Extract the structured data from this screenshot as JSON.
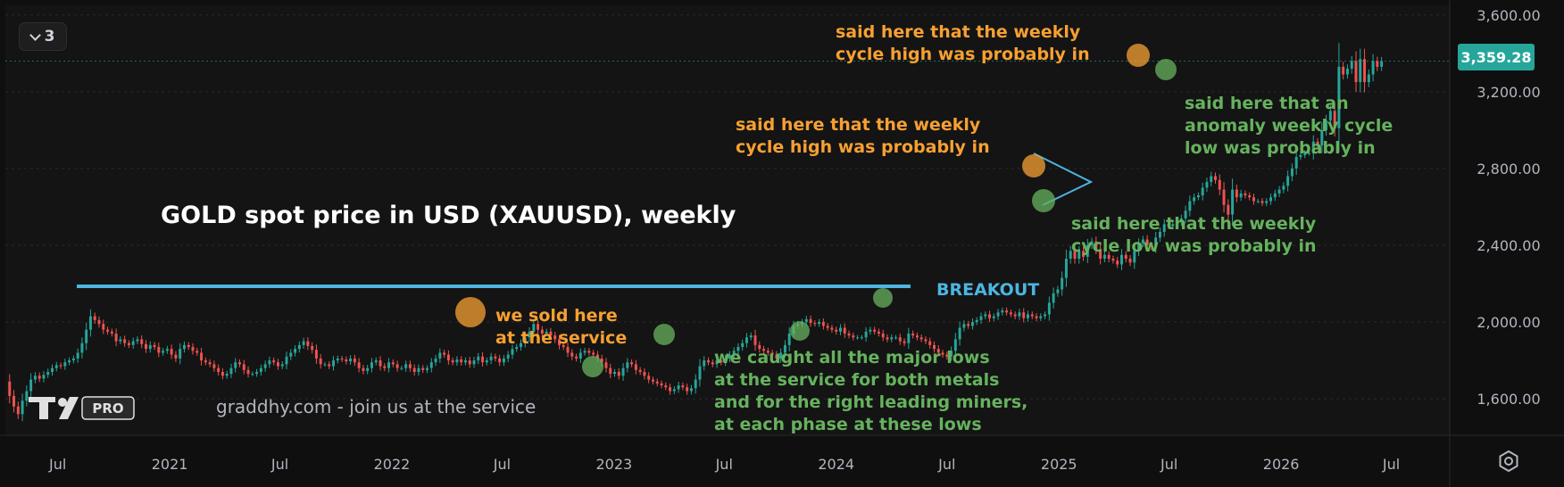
{
  "interval": {
    "label": "3"
  },
  "last_price": {
    "label": "3,359.28",
    "value": 3359.28,
    "color": "#26a69a"
  },
  "logo": {
    "label": "PRO"
  },
  "watermark": "graddhy.com - join us at the service",
  "icons": {
    "interval": "chevron-down-icon",
    "settings": "gear-icon",
    "logo": "tradingview-logo-icon"
  },
  "colors": {
    "up": "#26a69a",
    "down": "#ef5350",
    "orange": "#f7a032",
    "green": "#66b25e",
    "blue": "#4cb5e0",
    "axis_text": "#b2b5be"
  },
  "chart_data": {
    "type": "candlestick",
    "title": "GOLD spot price in USD (XAUUSD), weekly",
    "y_ticks": [
      1600,
      2000,
      2400,
      2800,
      3200,
      3600
    ],
    "y_tick_labels": [
      "1,600.00",
      "2,000.00",
      "2,400.00",
      "2,800.00",
      "3,200.00",
      "3,600.00"
    ],
    "ylim": [
      1410,
      3650
    ],
    "xlim": [
      "2020-04-06",
      "2026-10-05"
    ],
    "x_ticks": [
      {
        "date": "2020-07-01",
        "label": "Jul"
      },
      {
        "date": "2021-01-01",
        "label": "2021"
      },
      {
        "date": "2021-07-01",
        "label": "Jul"
      },
      {
        "date": "2022-01-01",
        "label": "2022"
      },
      {
        "date": "2022-07-01",
        "label": "Jul"
      },
      {
        "date": "2023-01-01",
        "label": "2023"
      },
      {
        "date": "2023-07-01",
        "label": "Jul"
      },
      {
        "date": "2024-01-01",
        "label": "2024"
      },
      {
        "date": "2024-07-01",
        "label": "Jul"
      },
      {
        "date": "2025-01-01",
        "label": "2025"
      },
      {
        "date": "2025-07-01",
        "label": "Jul"
      },
      {
        "date": "2026-01-01",
        "label": "2026"
      },
      {
        "date": "2026-07-01",
        "label": "Jul"
      }
    ],
    "start_date": "2020-04-06",
    "closes": [
      1690,
      1615,
      1560,
      1520,
      1590,
      1640,
      1700,
      1720,
      1705,
      1725,
      1740,
      1760,
      1775,
      1770,
      1790,
      1800,
      1810,
      1840,
      1890,
      1960,
      2030,
      2010,
      1990,
      1960,
      1950,
      1940,
      1900,
      1910,
      1890,
      1880,
      1900,
      1910,
      1885,
      1860,
      1880,
      1870,
      1840,
      1850,
      1860,
      1830,
      1810,
      1860,
      1880,
      1870,
      1850,
      1840,
      1800,
      1790,
      1780,
      1760,
      1740,
      1720,
      1730,
      1760,
      1790,
      1780,
      1750,
      1730,
      1730,
      1740,
      1760,
      1780,
      1800,
      1790,
      1770,
      1780,
      1820,
      1840,
      1860,
      1880,
      1900,
      1875,
      1855,
      1810,
      1780,
      1780,
      1770,
      1800,
      1810,
      1805,
      1795,
      1810,
      1790,
      1760,
      1745,
      1760,
      1790,
      1800,
      1770,
      1760,
      1790,
      1780,
      1760,
      1760,
      1780,
      1760,
      1740,
      1760,
      1750,
      1760,
      1790,
      1810,
      1840,
      1830,
      1800,
      1790,
      1805,
      1790,
      1800,
      1780,
      1800,
      1820,
      1790,
      1800,
      1820,
      1810,
      1790,
      1810,
      1830,
      1860,
      1870,
      1890,
      1920,
      1950,
      1990,
      1960,
      1940,
      1950,
      1930,
      1910,
      1880,
      1870,
      1840,
      1820,
      1810,
      1840,
      1850,
      1840,
      1830,
      1810,
      1790,
      1760,
      1730,
      1740,
      1720,
      1760,
      1790,
      1780,
      1750,
      1740,
      1720,
      1700,
      1690,
      1680,
      1670,
      1660,
      1640,
      1650,
      1670,
      1660,
      1640,
      1655,
      1700,
      1770,
      1800,
      1790,
      1780,
      1800,
      1790,
      1810,
      1830,
      1850,
      1870,
      1890,
      1920,
      1930,
      1880,
      1860,
      1850,
      1840,
      1830,
      1810,
      1840,
      1880,
      1940,
      1980,
      1990,
      2000,
      2015,
      1995,
      1990,
      2000,
      1980,
      1970,
      1960,
      1950,
      1970,
      1940,
      1930,
      1920,
      1920,
      1920,
      1950,
      1960,
      1950,
      1940,
      1920,
      1910,
      1920,
      1920,
      1900,
      1890,
      1940,
      1930,
      1920,
      1910,
      1900,
      1880,
      1860,
      1840,
      1830,
      1820,
      1850,
      1910,
      1970,
      1990,
      1980,
      2000,
      2010,
      2030,
      2040,
      2020,
      2030,
      2050,
      2060,
      2050,
      2040,
      2030,
      2050,
      2020,
      2040,
      2030,
      2020,
      2030,
      2040,
      2100,
      2150,
      2170,
      2230,
      2330,
      2370,
      2330,
      2370,
      2340,
      2400,
      2420,
      2380,
      2330,
      2350,
      2330,
      2320,
      2300,
      2350,
      2330,
      2310,
      2370,
      2410,
      2430,
      2400,
      2390,
      2440,
      2470,
      2510,
      2500,
      2510,
      2520,
      2540,
      2580,
      2630,
      2650,
      2660,
      2700,
      2730,
      2760,
      2740,
      2690,
      2610,
      2560,
      2690,
      2650,
      2670,
      2660,
      2650,
      2630,
      2630,
      2620,
      2630,
      2650,
      2670,
      2690,
      2710,
      2760,
      2800,
      2860,
      2870,
      2880,
      2880,
      2940,
      2920,
      3000,
      3050,
      3100,
      3010,
      3330,
      3290,
      3320,
      3360,
      3250,
      3370,
      3250,
      3290,
      3360,
      3330,
      3359
    ]
  },
  "annotations": {
    "cycle_high_top": "said here that the weekly\ncycle high was probably in",
    "cycle_high_mid": "said here that the weekly\ncycle high was probably in",
    "anomaly_low": "said here that an\nanomaly weekly cycle\nlow was probably in",
    "cycle_low": "said here that the weekly\ncycle low was probably in",
    "sold": "we sold here\nat the service",
    "major_lows": "we caught all the major lows\nat the service for both metals\nand for the right leading miners,\nat each phase at these lows",
    "breakout": "BREAKOUT"
  }
}
